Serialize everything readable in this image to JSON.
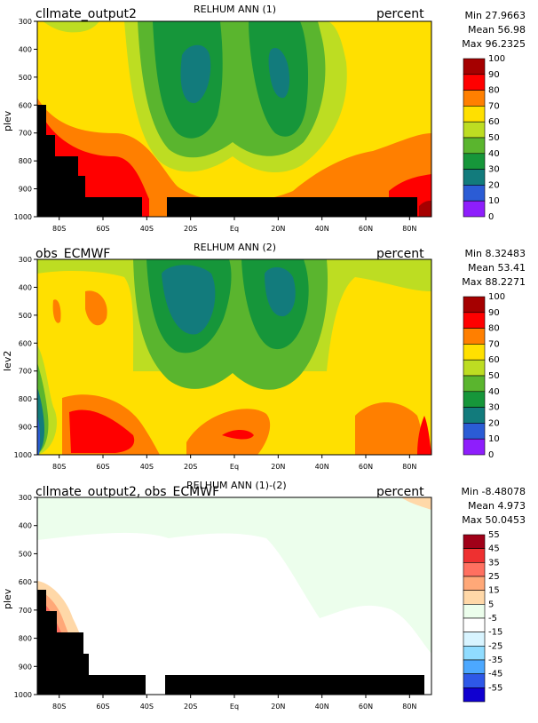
{
  "x_ticks": [
    "80S",
    "60S",
    "40S",
    "20S",
    "Eq",
    "20N",
    "40N",
    "60N",
    "80N"
  ],
  "y_ticks": [
    "300",
    "400",
    "500",
    "600",
    "700",
    "800",
    "900",
    "1000"
  ],
  "panels": [
    {
      "title": "RELHUM ANN (1)",
      "left_label": "cllmate_output2",
      "right_label": "percent",
      "ylabel": "plev",
      "stats": {
        "min": "Min 27.9663",
        "mean": "Mean 56.98",
        "max": "Max 96.2325"
      },
      "colorbar": {
        "labels": [
          "100",
          "90",
          "80",
          "70",
          "60",
          "50",
          "40",
          "30",
          "20",
          "10",
          "0"
        ],
        "colors": [
          "#a50000",
          "#ff0000",
          "#ff7f00",
          "#ffe000",
          "#bddd22",
          "#5ab52e",
          "#16963a",
          "#127b7c",
          "#2b5cd5",
          "#8e1efc"
        ]
      }
    },
    {
      "title": "RELHUM ANN (2)",
      "left_label": "obs_ECMWF",
      "right_label": "percent",
      "ylabel": "lev2",
      "stats": {
        "min": "Min 8.32483",
        "mean": "Mean 53.41",
        "max": "Max 88.2271"
      },
      "colorbar": {
        "labels": [
          "100",
          "90",
          "80",
          "70",
          "60",
          "50",
          "40",
          "30",
          "20",
          "10",
          "0"
        ],
        "colors": [
          "#a50000",
          "#ff0000",
          "#ff7f00",
          "#ffe000",
          "#bddd22",
          "#5ab52e",
          "#16963a",
          "#127b7c",
          "#2b5cd5",
          "#8e1efc"
        ]
      }
    },
    {
      "title": "RELHUM ANN (1)-(2)",
      "left_label": "cllmate_output2, obs_ECMWF",
      "right_label": "percent",
      "ylabel": "plev",
      "stats": {
        "min": "Min -8.48078",
        "mean": "Mean 4.973",
        "max": "Max 50.0453"
      },
      "colorbar": {
        "labels": [
          "55",
          "45",
          "35",
          "25",
          "15",
          "5",
          "-5",
          "-15",
          "-25",
          "-35",
          "-45",
          "-55"
        ],
        "colors": [
          "#a00018",
          "#ee3030",
          "#ff7060",
          "#ffa878",
          "#ffd8a8",
          "#ecfeec",
          "#ffffff",
          "#d8f4ff",
          "#90dcff",
          "#4ca8ff",
          "#2e58e8",
          "#1000d0"
        ]
      }
    }
  ],
  "chart_data": [
    {
      "type": "heatmap",
      "title": "RELHUM ANN (1)",
      "ylabel": "plev",
      "x": [
        "80S",
        "60S",
        "40S",
        "20S",
        "Eq",
        "20N",
        "40N",
        "60N",
        "80N"
      ],
      "y": [
        300,
        400,
        500,
        600,
        700,
        800,
        900,
        1000
      ],
      "zrange": [
        0,
        100
      ],
      "levels": [
        0,
        10,
        20,
        30,
        40,
        50,
        60,
        70,
        80,
        90,
        100
      ],
      "min": 27.9663,
      "mean": 56.98,
      "max": 96.2325
    },
    {
      "type": "heatmap",
      "title": "RELHUM ANN (2)",
      "ylabel": "lev2",
      "x": [
        "80S",
        "60S",
        "40S",
        "20S",
        "Eq",
        "20N",
        "40N",
        "60N",
        "80N"
      ],
      "y": [
        300,
        400,
        500,
        600,
        700,
        800,
        900,
        1000
      ],
      "zrange": [
        0,
        100
      ],
      "levels": [
        0,
        10,
        20,
        30,
        40,
        50,
        60,
        70,
        80,
        90,
        100
      ],
      "min": 8.32483,
      "mean": 53.41,
      "max": 88.2271
    },
    {
      "type": "heatmap",
      "title": "RELHUM ANN (1)-(2)",
      "ylabel": "plev",
      "x": [
        "80S",
        "60S",
        "40S",
        "20S",
        "Eq",
        "20N",
        "40N",
        "60N",
        "80N"
      ],
      "y": [
        300,
        400,
        500,
        600,
        700,
        800,
        900,
        1000
      ],
      "zrange": [
        -55,
        55
      ],
      "levels": [
        -55,
        -45,
        -35,
        -25,
        -15,
        -5,
        5,
        15,
        25,
        35,
        45,
        55
      ],
      "min": -8.48078,
      "mean": 4.973,
      "max": 50.0453
    }
  ]
}
